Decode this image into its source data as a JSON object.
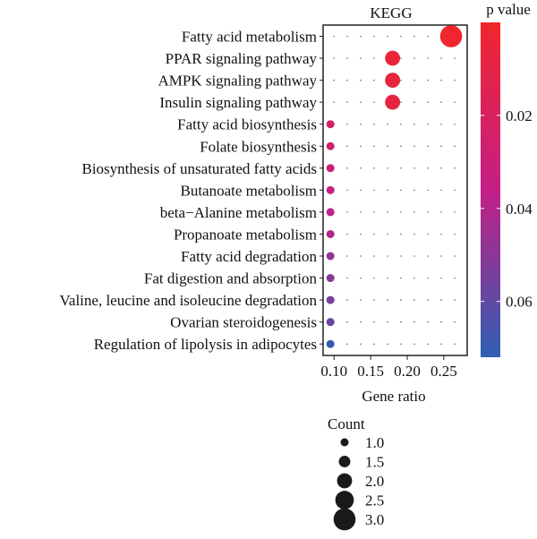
{
  "chart_data": {
    "type": "scatter",
    "title": "KEGG",
    "xlabel": "Gene ratio",
    "ylabel": "",
    "xlim": [
      0.085,
      0.282
    ],
    "x_ticks": [
      0.1,
      0.15,
      0.2,
      0.25
    ],
    "x_tick_labels": [
      "0.10",
      "0.15",
      "0.20",
      "0.25"
    ],
    "grid": true,
    "categories": [
      "Fatty acid metabolism",
      "PPAR signaling pathway",
      "AMPK signaling pathway",
      "Insulin signaling pathway",
      "Fatty acid biosynthesis",
      "Folate biosynthesis",
      "Biosynthesis of unsaturated fatty acids",
      "Butanoate metabolism",
      "beta−Alanine metabolism",
      "Propanoate metabolism",
      "Fatty acid degradation",
      "Fat digestion and absorption",
      "Valine, leucine and isoleucine degradation",
      "Ovarian steroidogenesis",
      "Regulation of lipolysis in adipocytes"
    ],
    "points": [
      {
        "term": "Fatty acid metabolism",
        "gene_ratio": 0.26,
        "count": 3,
        "p_value": 0.001
      },
      {
        "term": "PPAR signaling pathway",
        "gene_ratio": 0.18,
        "count": 2,
        "p_value": 0.006
      },
      {
        "term": "AMPK signaling pathway",
        "gene_ratio": 0.18,
        "count": 2,
        "p_value": 0.007
      },
      {
        "term": "Insulin signaling pathway",
        "gene_ratio": 0.18,
        "count": 2,
        "p_value": 0.008
      },
      {
        "term": "Fatty acid biosynthesis",
        "gene_ratio": 0.095,
        "count": 1,
        "p_value": 0.024
      },
      {
        "term": "Folate biosynthesis",
        "gene_ratio": 0.095,
        "count": 1,
        "p_value": 0.027
      },
      {
        "term": "Biosynthesis of unsaturated fatty acids",
        "gene_ratio": 0.095,
        "count": 1,
        "p_value": 0.031
      },
      {
        "term": "Butanoate metabolism",
        "gene_ratio": 0.095,
        "count": 1,
        "p_value": 0.034
      },
      {
        "term": "beta−Alanine metabolism",
        "gene_ratio": 0.095,
        "count": 1,
        "p_value": 0.037
      },
      {
        "term": "Propanoate metabolism",
        "gene_ratio": 0.095,
        "count": 1,
        "p_value": 0.04
      },
      {
        "term": "Fatty acid degradation",
        "gene_ratio": 0.095,
        "count": 1,
        "p_value": 0.048
      },
      {
        "term": "Fat digestion and absorption",
        "gene_ratio": 0.095,
        "count": 1,
        "p_value": 0.051
      },
      {
        "term": "Valine, leucine and isoleucine degradation",
        "gene_ratio": 0.095,
        "count": 1,
        "p_value": 0.055
      },
      {
        "term": "Ovarian steroidogenesis",
        "gene_ratio": 0.095,
        "count": 1,
        "p_value": 0.058
      },
      {
        "term": "Regulation of lipolysis in adipocytes",
        "gene_ratio": 0.095,
        "count": 1,
        "p_value": 0.069
      }
    ],
    "color_legend": {
      "title": "p value",
      "range": [
        0.0,
        0.072
      ],
      "ticks": [
        0.02,
        0.04,
        0.06
      ],
      "tick_labels": [
        "0.02",
        "0.04",
        "0.06"
      ],
      "low_color": "#f0262b",
      "mid_color": "#c41f86",
      "high_color": "#2f5fb2"
    },
    "size_legend": {
      "title": "Count",
      "values": [
        1.0,
        1.5,
        2.0,
        2.5,
        3.0
      ],
      "labels": [
        "1.0",
        "1.5",
        "2.0",
        "2.5",
        "3.0"
      ]
    }
  }
}
